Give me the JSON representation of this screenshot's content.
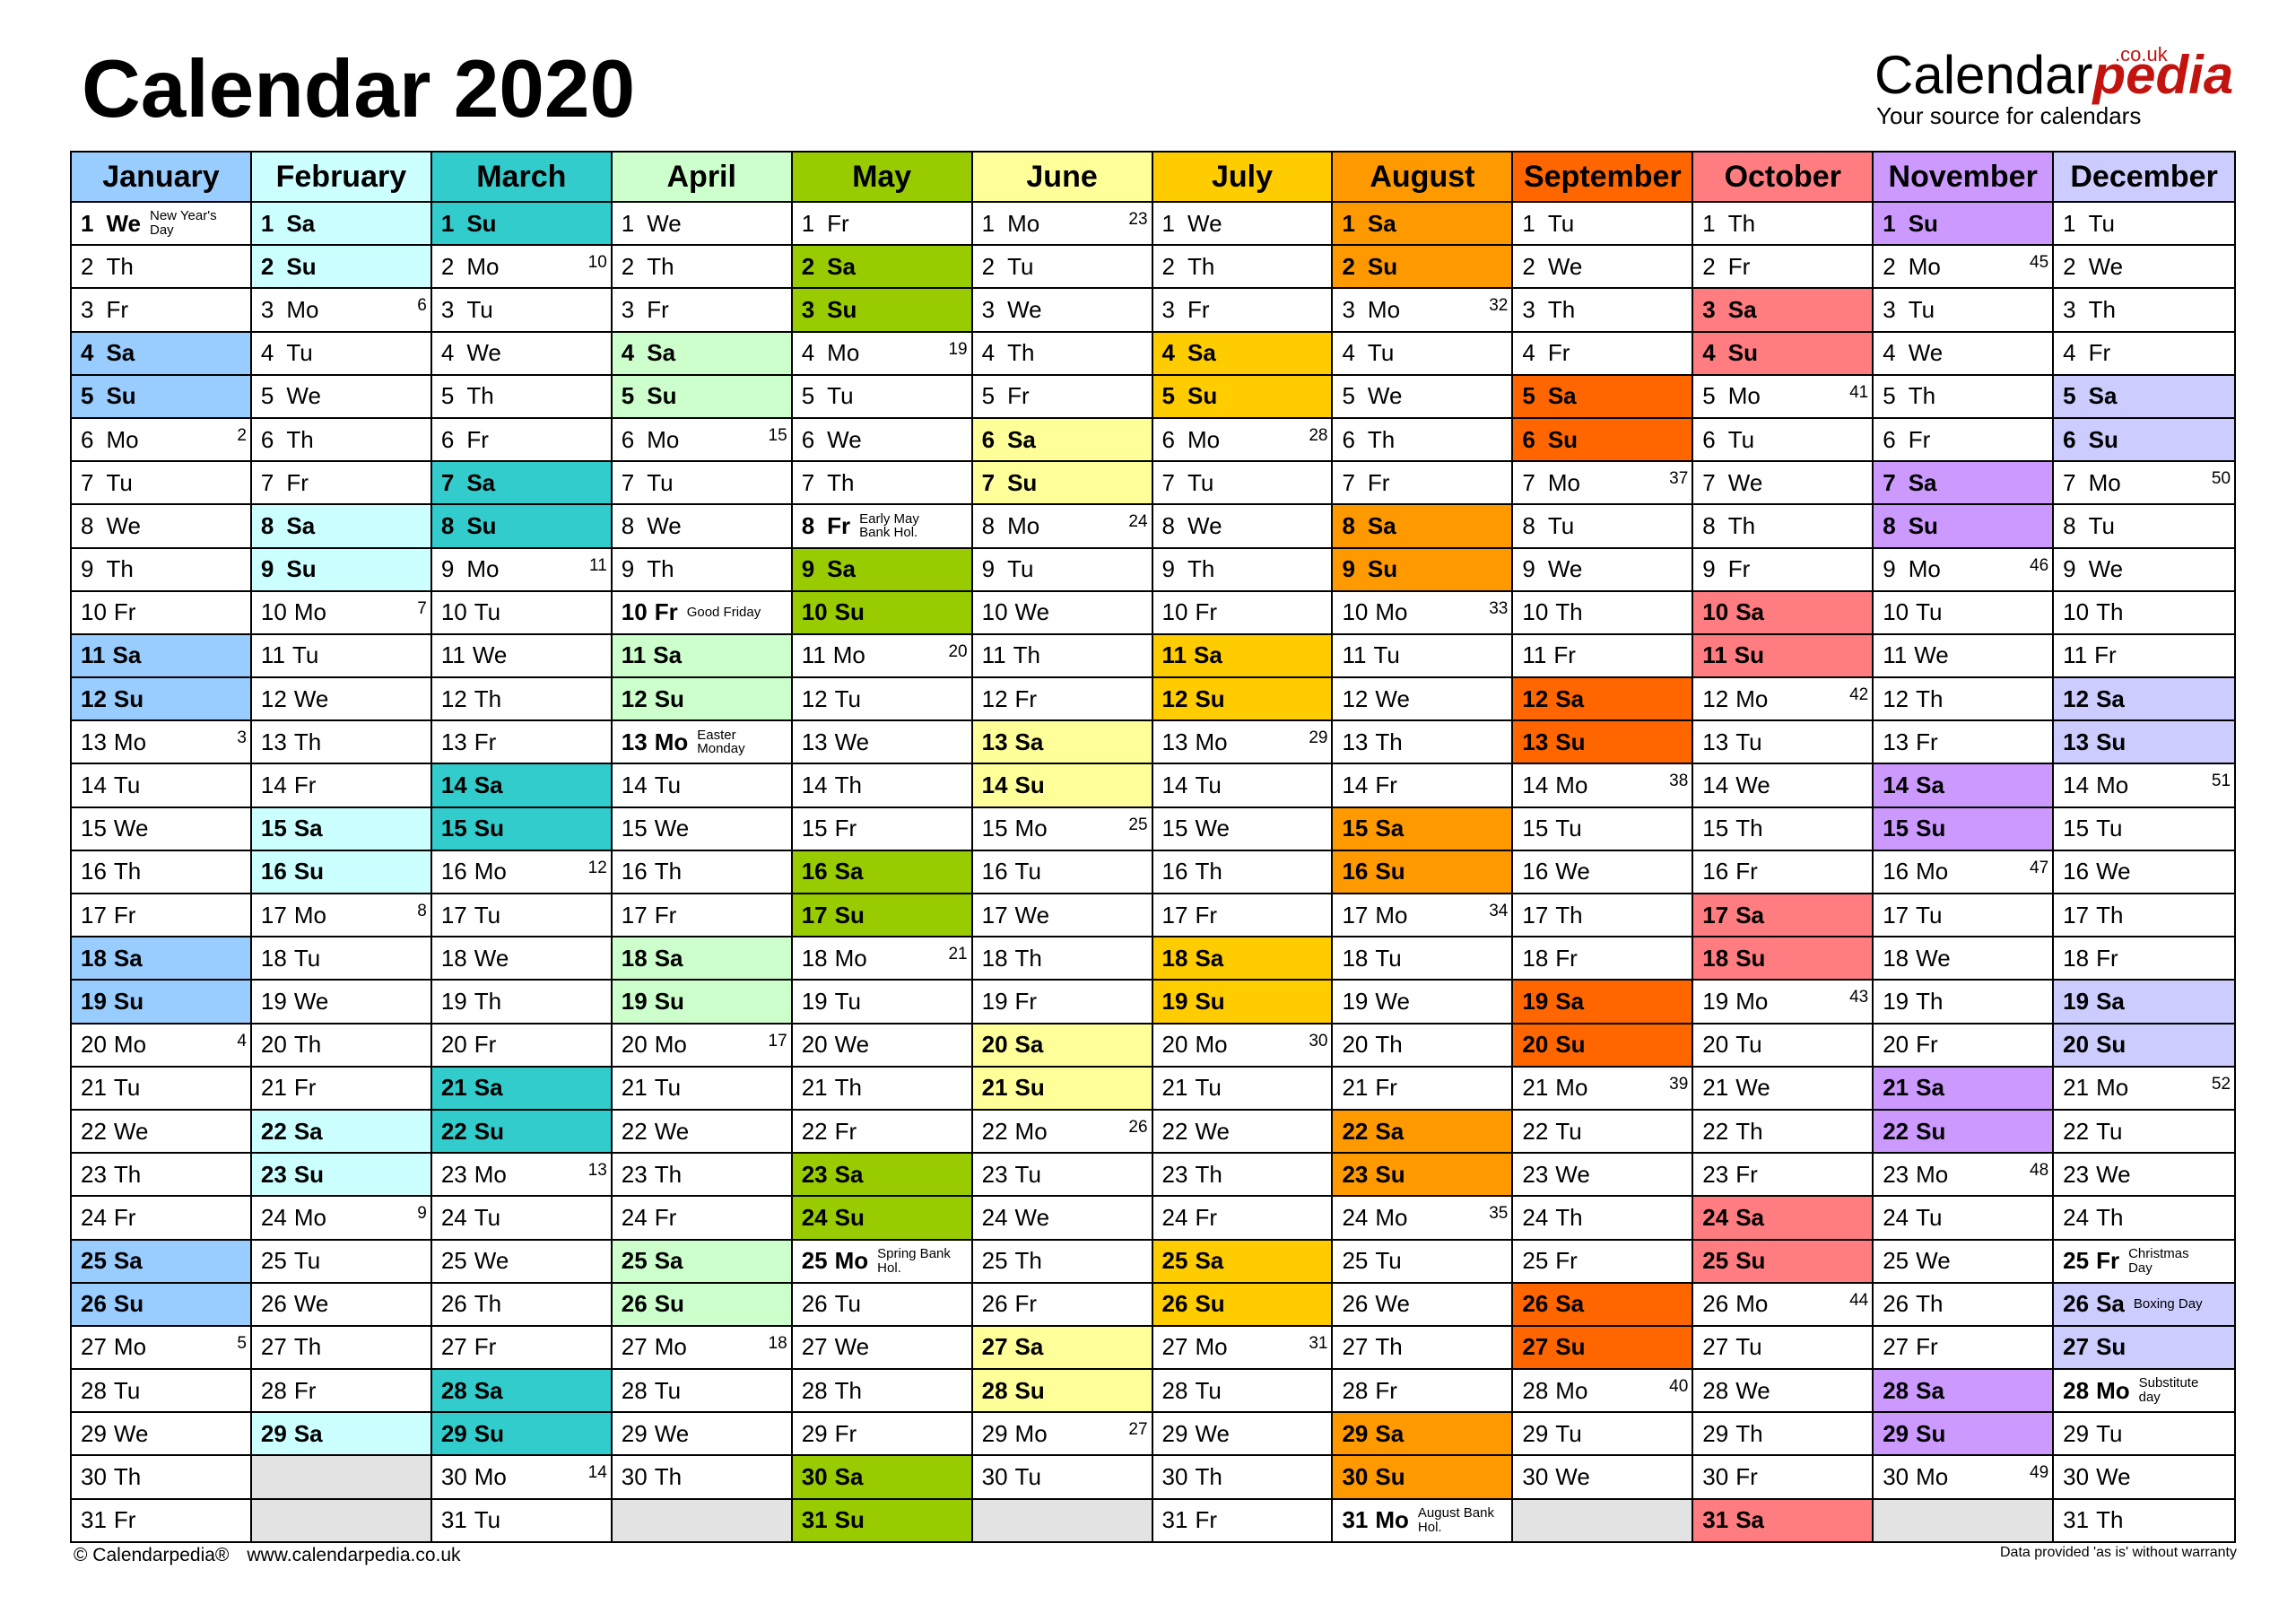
{
  "title": "Calendar 2020",
  "logo": {
    "brand_regular": "Calendar",
    "brand_italic": "pedia",
    "domain": ".co.uk",
    "tagline": "Your source for calendars"
  },
  "footer": {
    "copyright": "© Calendarpedia®",
    "url": "www.calendarpedia.co.uk",
    "disclaimer": "Data provided 'as is' without warranty"
  },
  "months": [
    {
      "name": "January",
      "color": "#99ccff",
      "start": 3,
      "length": 31,
      "weeks": {
        "6": "2",
        "13": "3",
        "20": "4",
        "27": "5"
      },
      "holidays": {
        "1": "New Year's Day"
      },
      "extra_bold": [
        1
      ]
    },
    {
      "name": "February",
      "color": "#ccffff",
      "start": 6,
      "length": 29,
      "weeks": {
        "3": "6",
        "10": "7",
        "17": "8",
        "24": "9"
      },
      "holidays": {},
      "extra_bold": []
    },
    {
      "name": "March",
      "color": "#33cccc",
      "start": 0,
      "length": 31,
      "weeks": {
        "2": "10",
        "9": "11",
        "16": "12",
        "23": "13",
        "30": "14"
      },
      "holidays": {},
      "extra_bold": []
    },
    {
      "name": "April",
      "color": "#ccffcc",
      "start": 3,
      "length": 30,
      "weeks": {
        "6": "15",
        "20": "17",
        "27": "18"
      },
      "holidays": {
        "10": "Good Friday",
        "13": "Easter Monday"
      },
      "extra_bold": [
        10,
        13
      ]
    },
    {
      "name": "May",
      "color": "#99cc00",
      "start": 5,
      "length": 31,
      "weeks": {
        "4": "19",
        "11": "20",
        "18": "21"
      },
      "holidays": {
        "8": "Early May Bank Hol.",
        "25": "Spring Bank Hol."
      },
      "extra_bold": [
        8,
        25
      ]
    },
    {
      "name": "June",
      "color": "#ffff99",
      "start": 1,
      "length": 30,
      "weeks": {
        "1": "23",
        "8": "24",
        "15": "25",
        "22": "26",
        "29": "27"
      },
      "holidays": {},
      "extra_bold": []
    },
    {
      "name": "July",
      "color": "#ffcc00",
      "start": 3,
      "length": 31,
      "weeks": {
        "6": "28",
        "13": "29",
        "20": "30",
        "27": "31"
      },
      "holidays": {},
      "extra_bold": []
    },
    {
      "name": "August",
      "color": "#ff9900",
      "start": 6,
      "length": 31,
      "weeks": {
        "3": "32",
        "10": "33",
        "17": "34",
        "24": "35"
      },
      "holidays": {
        "31": "August Bank Hol."
      },
      "extra_bold": [
        31
      ]
    },
    {
      "name": "September",
      "color": "#ff6600",
      "start": 2,
      "length": 30,
      "weeks": {
        "7": "37",
        "14": "38",
        "21": "39",
        "28": "40"
      },
      "holidays": {},
      "extra_bold": []
    },
    {
      "name": "October",
      "color": "#ff7c80",
      "start": 4,
      "length": 31,
      "weeks": {
        "5": "41",
        "12": "42",
        "19": "43",
        "26": "44"
      },
      "holidays": {},
      "extra_bold": []
    },
    {
      "name": "November",
      "color": "#cc99ff",
      "start": 0,
      "length": 30,
      "weeks": {
        "2": "45",
        "9": "46",
        "16": "47",
        "23": "48",
        "30": "49"
      },
      "holidays": {},
      "extra_bold": []
    },
    {
      "name": "December",
      "color": "#ccccff",
      "start": 2,
      "length": 31,
      "weeks": {
        "7": "50",
        "14": "51",
        "21": "52"
      },
      "holidays": {
        "25": "Christmas Day",
        "26": "Boxing Day",
        "28": "Substitute day"
      },
      "extra_bold": [
        25,
        28
      ]
    }
  ],
  "day_abbr": [
    "Su",
    "Mo",
    "Tu",
    "We",
    "Th",
    "Fr",
    "Sa"
  ],
  "empty_color": "#e3e3e3"
}
